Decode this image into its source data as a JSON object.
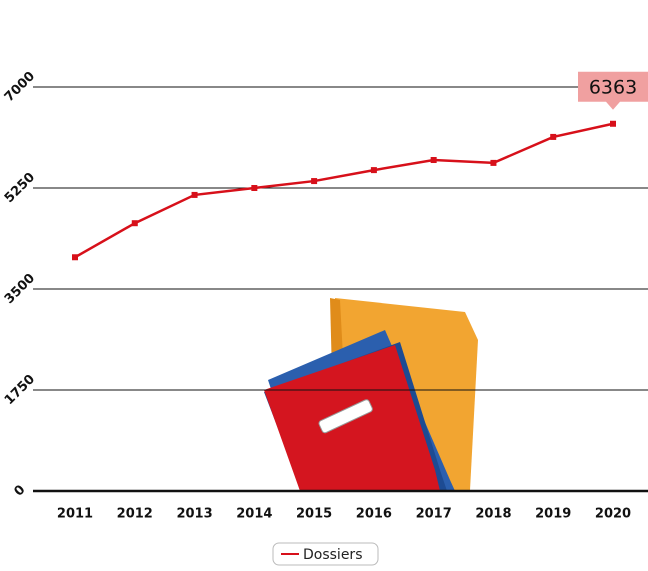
{
  "chart_data": {
    "type": "line",
    "categories": [
      "2011",
      "2012",
      "2013",
      "2014",
      "2015",
      "2016",
      "2017",
      "2018",
      "2019",
      "2020"
    ],
    "series": [
      {
        "name": "Dossiers",
        "color": "#d7101a",
        "values": [
          4050,
          4640,
          5130,
          5250,
          5370,
          5560,
          5735,
          5685,
          6135,
          6363
        ]
      }
    ],
    "highlight_label_index": 9,
    "ylim": [
      0,
      7000
    ],
    "yticks": [
      0,
      1750,
      3500,
      5250,
      7000
    ],
    "grid": true
  }
}
